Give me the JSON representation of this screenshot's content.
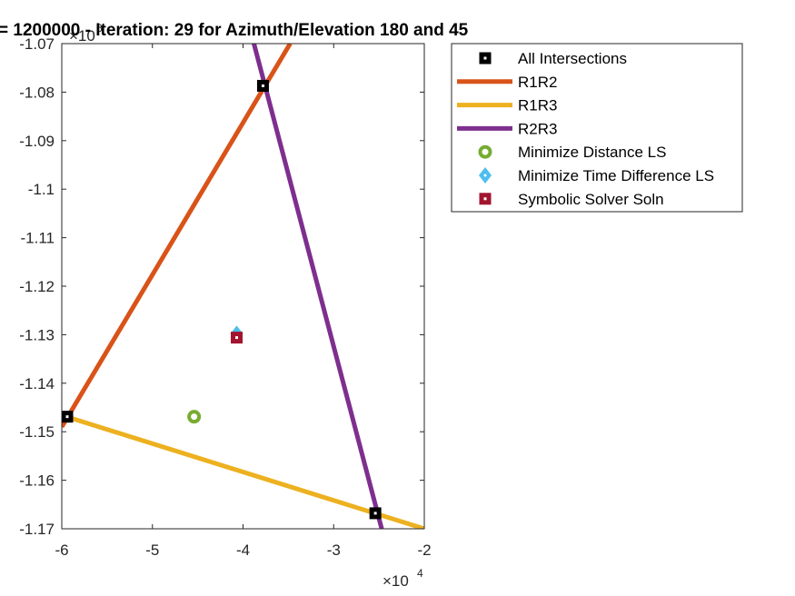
{
  "chart_data": {
    "type": "line",
    "title": "= 1200000 - Iteration: 29 for Azimuth/Elevation 180 and 45",
    "xlabel": "",
    "ylabel": "",
    "xlim": [
      -60000,
      -20000
    ],
    "ylim": [
      -1170000,
      -1070000
    ],
    "x_ticks": [
      -60000,
      -50000,
      -40000,
      -30000,
      -20000
    ],
    "x_tick_labels": [
      "-6",
      "-5",
      "-4",
      "-3",
      "-2"
    ],
    "y_ticks": [
      -1070000,
      -1080000,
      -1090000,
      -1100000,
      -1110000,
      -1120000,
      -1130000,
      -1140000,
      -1150000,
      -1160000,
      -1170000
    ],
    "y_tick_labels": [
      "-1.07",
      "-1.08",
      "-1.09",
      "-1.1",
      "-1.11",
      "-1.12",
      "-1.13",
      "-1.14",
      "-1.15",
      "-1.16",
      "-1.17"
    ],
    "x_exponent_label": "×10",
    "x_exponent_power": "4",
    "y_exponent_label": "×10",
    "y_exponent_power": "6",
    "grid": false,
    "legend_position": "outside-top-right",
    "series": [
      {
        "name": "All Intersections",
        "kind": "marker",
        "marker": "square",
        "color": "#000000",
        "x": [
          -59400,
          -37800,
          -25400
        ],
        "y": [
          -1146900,
          -1078700,
          -1166800
        ]
      },
      {
        "name": "R1R2",
        "kind": "line",
        "color": "#D95319",
        "x": [
          -60000,
          -34800
        ],
        "y": [
          -1149000,
          -1070000
        ]
      },
      {
        "name": "R1R3",
        "kind": "line",
        "color": "#EDB120",
        "x": [
          -60000,
          -20000
        ],
        "y": [
          -1146600,
          -1170000
        ]
      },
      {
        "name": "R2R3",
        "kind": "line",
        "color": "#7E2F8E",
        "x": [
          -38800,
          -24700
        ],
        "y": [
          -1070000,
          -1170000
        ]
      },
      {
        "name": "Minimize Distance LS",
        "kind": "marker",
        "marker": "circle",
        "color": "#77AC30",
        "x": [
          -45400
        ],
        "y": [
          -1146900
        ]
      },
      {
        "name": "Minimize Time Difference LS",
        "kind": "marker",
        "marker": "diamond",
        "color": "#4DBEEE",
        "x": [
          -40700
        ],
        "y": [
          -1129800
        ]
      },
      {
        "name": "Symbolic Solver Soln",
        "kind": "marker",
        "marker": "square",
        "color": "#A2142F",
        "x": [
          -40700
        ],
        "y": [
          -1130600
        ]
      }
    ]
  }
}
